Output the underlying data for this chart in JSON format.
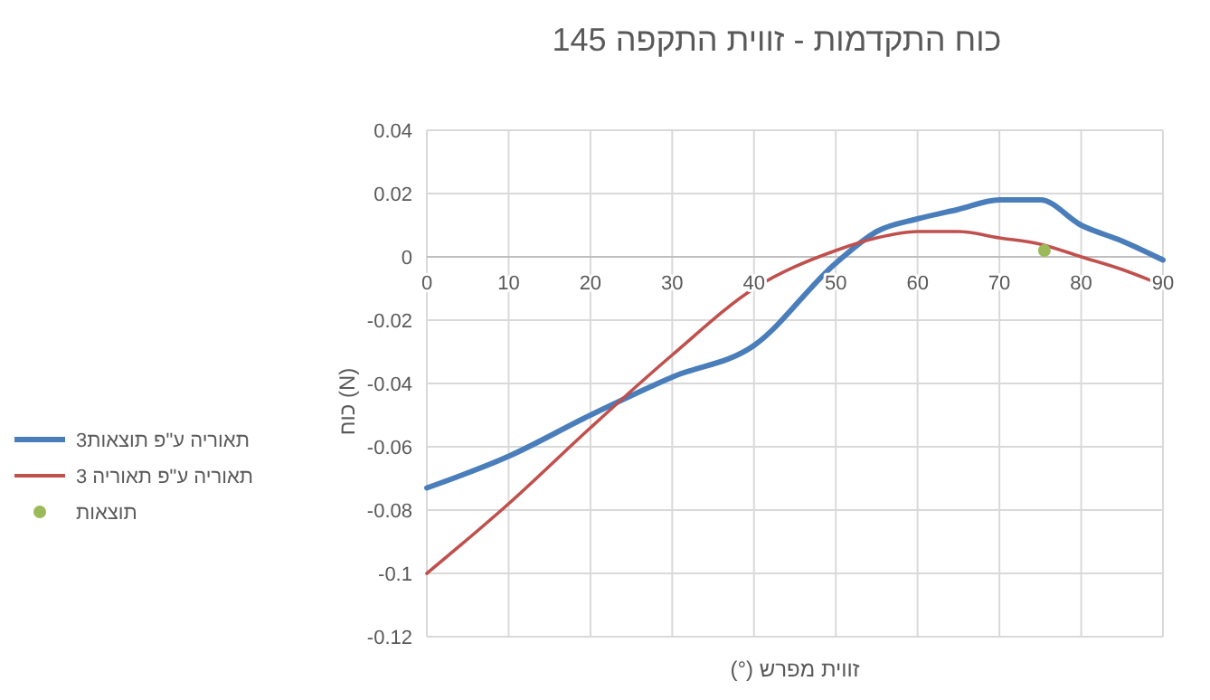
{
  "chart_data": {
    "type": "line",
    "title": "כוח התקדמות - זווית התקפה 145",
    "xlabel": "זווית מפרש (°)",
    "ylabel": "כוח (N)",
    "x": [
      0,
      10,
      20,
      30,
      40,
      50,
      55,
      60,
      65,
      70,
      75,
      80,
      85,
      90
    ],
    "series": [
      {
        "name": "תאוריה ע\"פ תוצאות3",
        "color": "#4a7ebb",
        "values": [
          -0.073,
          -0.063,
          -0.05,
          -0.038,
          -0.028,
          -0.002,
          0.008,
          0.012,
          0.015,
          0.018,
          0.018,
          0.01,
          0.005,
          -0.001
        ]
      },
      {
        "name": "תאוריה ע\"פ תאוריה 3",
        "color": "#c0504d",
        "values": [
          -0.1,
          -0.078,
          -0.054,
          -0.031,
          -0.01,
          0.002,
          0.006,
          0.008,
          0.008,
          0.006,
          0.004,
          0,
          -0.004,
          -0.009
        ]
      },
      {
        "name": "תוצאות",
        "type": "scatter",
        "color": "#9bbb59",
        "x": [
          75.5
        ],
        "values": [
          0.002
        ]
      }
    ],
    "xlim": [
      0,
      90
    ],
    "xticks": [
      0,
      10,
      20,
      30,
      40,
      50,
      60,
      70,
      80,
      90
    ],
    "ylim": [
      -0.12,
      0.04
    ],
    "yticks": [
      -0.12,
      -0.1,
      -0.08,
      -0.06,
      -0.04,
      -0.02,
      0,
      0.02,
      0.04
    ],
    "grid": true,
    "legend": "left"
  }
}
